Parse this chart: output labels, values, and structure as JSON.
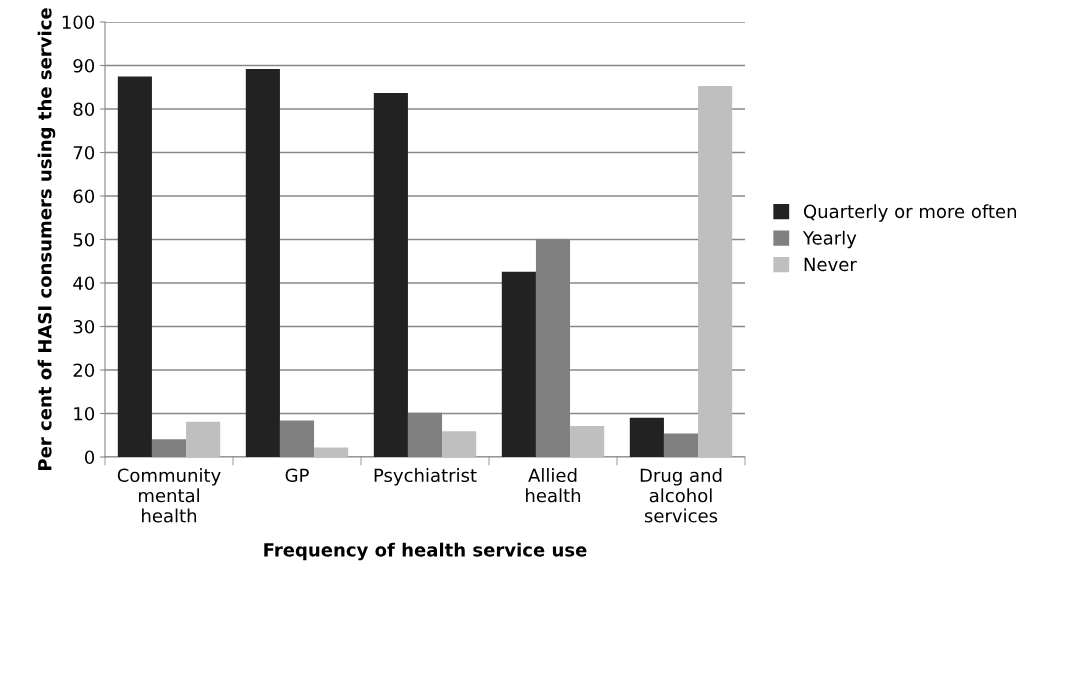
{
  "chart_data": {
    "type": "bar",
    "xlabel": "Frequency of health service use",
    "ylabel": "Per cent of HASI consumers using the service",
    "categories": [
      "Community\nmental\nhealth",
      "GP",
      "Psychiatrist",
      "Allied\nhealth",
      "Drug and\nalcohol\nservices"
    ],
    "series": [
      {
        "name": "Quarterly or more often",
        "color": "#222222",
        "values": [
          87.5,
          89.2,
          83.7,
          42.6,
          9.0
        ]
      },
      {
        "name": "Yearly",
        "color": "#808080",
        "values": [
          4.1,
          8.4,
          10.2,
          50.0,
          5.4
        ]
      },
      {
        "name": "Never",
        "color": "#bfbfbf",
        "values": [
          8.1,
          2.2,
          5.9,
          7.1,
          85.3
        ]
      }
    ],
    "ylim": [
      0,
      100
    ],
    "yticks": [
      0,
      10,
      20,
      30,
      40,
      50,
      60,
      70,
      80,
      90,
      100
    ],
    "grid": "y",
    "legend": "right"
  }
}
